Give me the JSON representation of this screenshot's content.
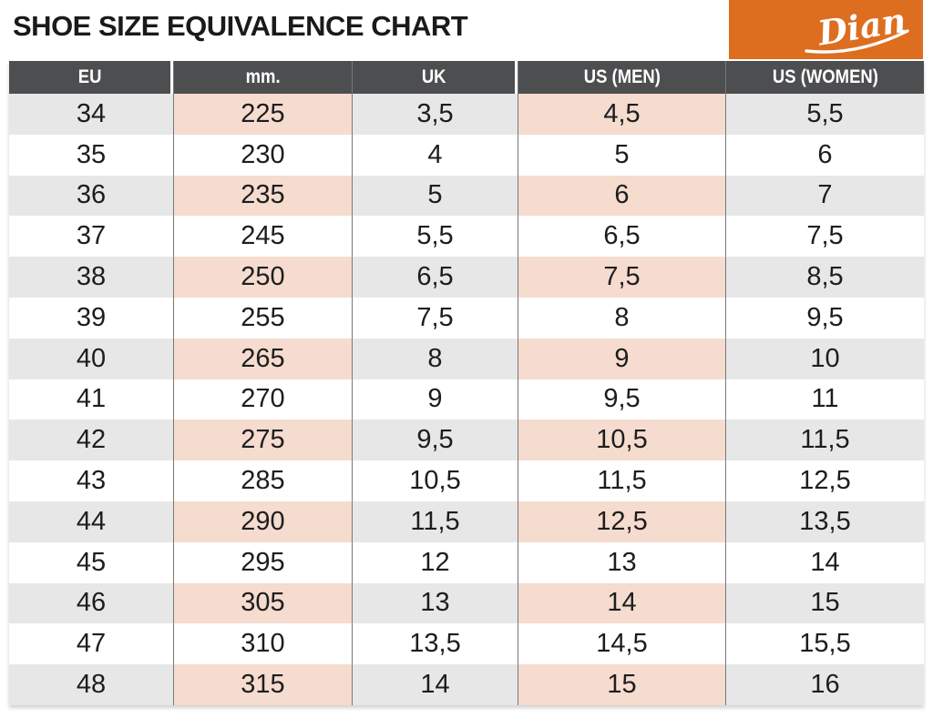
{
  "page_title": "SHOE SIZE EQUIVALENCE CHART",
  "logo": {
    "brand": "Dian",
    "bg_color": "#dd6e1f",
    "text_color": "#ffffff"
  },
  "chart_data": {
    "type": "table",
    "title": "SHOE SIZE EQUIVALENCE CHART",
    "columns": [
      "EU",
      "mm.",
      "UK",
      "US (MEN)",
      "US (WOMEN)"
    ],
    "rows": [
      [
        "34",
        "225",
        "3,5",
        "4,5",
        "5,5"
      ],
      [
        "35",
        "230",
        "4",
        "5",
        "6"
      ],
      [
        "36",
        "235",
        "5",
        "6",
        "7"
      ],
      [
        "37",
        "245",
        "5,5",
        "6,5",
        "7,5"
      ],
      [
        "38",
        "250",
        "6,5",
        "7,5",
        "8,5"
      ],
      [
        "39",
        "255",
        "7,5",
        "8",
        "9,5"
      ],
      [
        "40",
        "265",
        "8",
        "9",
        "10"
      ],
      [
        "41",
        "270",
        "9",
        "9,5",
        "11"
      ],
      [
        "42",
        "275",
        "9,5",
        "10,5",
        "11,5"
      ],
      [
        "43",
        "285",
        "10,5",
        "11,5",
        "12,5"
      ],
      [
        "44",
        "290",
        "11,5",
        "12,5",
        "13,5"
      ],
      [
        "45",
        "295",
        "12",
        "13",
        "14"
      ],
      [
        "46",
        "305",
        "13",
        "14",
        "15"
      ],
      [
        "47",
        "310",
        "13,5",
        "14,5",
        "15,5"
      ],
      [
        "48",
        "315",
        "14",
        "15",
        "16"
      ]
    ],
    "layout": {
      "shaded_row_pattern": "every-other-starting-first",
      "pink_columns": [
        "mm.",
        "US (MEN)"
      ],
      "gray_columns": [
        "EU",
        "UK",
        "US (WOMEN)"
      ]
    }
  },
  "colors": {
    "header_bg": "#4d4e50",
    "header_text": "#ffffff",
    "row_gray": "#e8e7e8",
    "row_pink": "#f5dcce",
    "row_white": "#ffffff",
    "column_rule": "#77787a",
    "cell_text": "#1d1d1f",
    "title_text": "#1a1a1a",
    "logo_orange": "#dd6e1f"
  }
}
